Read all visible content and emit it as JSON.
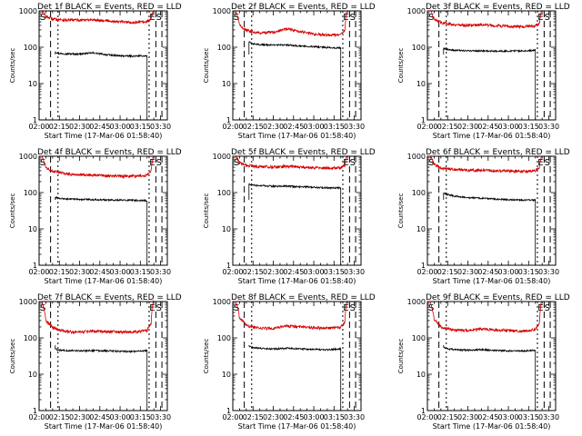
{
  "chart_data": [
    {
      "type": "line",
      "title": "Det 1f BLACK = Events, RED = LLD",
      "xlabel": "Start Time (17-Mar-06 01:58:40)",
      "ylabel": "Counts/sec",
      "y_scale": "log",
      "ylim": [
        1,
        1000
      ],
      "xlim_minutes": [
        0,
        95
      ],
      "x_tick_labels": [
        "02:00",
        "02:15",
        "02:30",
        "02:45",
        "03:00",
        "03:15",
        "03:30"
      ],
      "y_tick_labels": [
        "1",
        "10",
        "100",
        "1000"
      ],
      "markers": [
        {
          "label": "S",
          "time": "02:00"
        },
        {
          "label": "E",
          "time": "03:21"
        },
        {
          "label": "S",
          "time": "03:26"
        }
      ],
      "series": [
        {
          "name": "Events",
          "color": "#000000",
          "x_minutes": [
            12,
            14,
            20,
            30,
            40,
            50,
            60,
            70,
            80
          ],
          "values": [
            75,
            68,
            66,
            65,
            70,
            62,
            58,
            57,
            58
          ]
        },
        {
          "name": "LLD",
          "color": "#d40000",
          "x_minutes": [
            2,
            5,
            10,
            14,
            20,
            30,
            40,
            50,
            60,
            70,
            80,
            83,
            84.5
          ],
          "values": [
            1000,
            700,
            600,
            580,
            560,
            560,
            570,
            540,
            500,
            480,
            500,
            600,
            1000
          ]
        }
      ]
    },
    {
      "type": "line",
      "title": "Det 2f BLACK = Events, RED = LLD",
      "xlabel": "Start Time (17-Mar-06 01:58:40)",
      "ylabel": "Counts/sec",
      "y_scale": "log",
      "ylim": [
        1,
        1000
      ],
      "xlim_minutes": [
        0,
        95
      ],
      "x_tick_labels": [
        "02:00",
        "02:15",
        "02:30",
        "02:45",
        "03:00",
        "03:15",
        "03:30"
      ],
      "y_tick_labels": [
        "1",
        "10",
        "100",
        "1000"
      ],
      "markers": [
        {
          "label": "S",
          "time": "02:00"
        },
        {
          "label": "E",
          "time": "03:21"
        },
        {
          "label": "S",
          "time": "03:26"
        }
      ],
      "series": [
        {
          "name": "Events",
          "color": "#000000",
          "x_minutes": [
            12,
            14,
            20,
            30,
            40,
            50,
            60,
            70,
            80
          ],
          "values": [
            140,
            125,
            118,
            115,
            115,
            108,
            105,
            98,
            95
          ]
        },
        {
          "name": "LLD",
          "color": "#d40000",
          "x_minutes": [
            2,
            5,
            10,
            14,
            20,
            30,
            40,
            50,
            60,
            70,
            80,
            83,
            84.5
          ],
          "values": [
            1000,
            400,
            290,
            270,
            250,
            260,
            320,
            270,
            230,
            220,
            215,
            300,
            1000
          ]
        }
      ]
    },
    {
      "type": "line",
      "title": "Det 3f BLACK = Events, RED = LLD",
      "xlabel": "Start Time (17-Mar-06 01:58:40)",
      "ylabel": "Counts/sec",
      "y_scale": "log",
      "ylim": [
        1,
        1000
      ],
      "xlim_minutes": [
        0,
        95
      ],
      "x_tick_labels": [
        "02:00",
        "02:15",
        "02:30",
        "02:45",
        "03:00",
        "03:15",
        "03:30"
      ],
      "y_tick_labels": [
        "1",
        "10",
        "100",
        "1000"
      ],
      "markers": [
        {
          "label": "S",
          "time": "02:00"
        },
        {
          "label": "E",
          "time": "03:21"
        },
        {
          "label": "S",
          "time": "03:26"
        }
      ],
      "series": [
        {
          "name": "Events",
          "color": "#000000",
          "x_minutes": [
            12,
            14,
            20,
            30,
            40,
            50,
            60,
            70,
            80
          ],
          "values": [
            95,
            88,
            82,
            80,
            80,
            78,
            78,
            80,
            82
          ]
        },
        {
          "name": "LLD",
          "color": "#d40000",
          "x_minutes": [
            2,
            5,
            10,
            14,
            20,
            30,
            40,
            50,
            60,
            70,
            80,
            83,
            84.5
          ],
          "values": [
            1000,
            600,
            480,
            450,
            420,
            400,
            420,
            390,
            380,
            370,
            380,
            450,
            1000
          ]
        }
      ]
    },
    {
      "type": "line",
      "title": "Det 4f BLACK = Events, RED = LLD",
      "xlabel": "Start Time (17-Mar-06 01:58:40)",
      "ylabel": "Counts/sec",
      "y_scale": "log",
      "ylim": [
        1,
        1000
      ],
      "xlim_minutes": [
        0,
        95
      ],
      "x_tick_labels": [
        "02:00",
        "02:15",
        "02:30",
        "02:45",
        "03:00",
        "03:15",
        "03:30"
      ],
      "y_tick_labels": [
        "1",
        "10",
        "100",
        "1000"
      ],
      "markers": [
        {
          "label": "S",
          "time": "02:00"
        },
        {
          "label": "E",
          "time": "03:21"
        },
        {
          "label": "S",
          "time": "03:26"
        }
      ],
      "series": [
        {
          "name": "Events",
          "color": "#000000",
          "x_minutes": [
            12,
            14,
            20,
            30,
            40,
            50,
            60,
            70,
            80
          ],
          "values": [
            75,
            70,
            67,
            65,
            64,
            63,
            62,
            61,
            60
          ]
        },
        {
          "name": "LLD",
          "color": "#d40000",
          "x_minutes": [
            2,
            5,
            10,
            14,
            20,
            30,
            40,
            50,
            60,
            70,
            80,
            83,
            84.5
          ],
          "values": [
            1000,
            500,
            380,
            360,
            330,
            310,
            300,
            290,
            280,
            285,
            300,
            400,
            1000
          ]
        }
      ]
    },
    {
      "type": "line",
      "title": "Det 5f BLACK = Events, RED = LLD",
      "xlabel": "Start Time (17-Mar-06 01:58:40)",
      "ylabel": "Counts/sec",
      "y_scale": "log",
      "ylim": [
        1,
        1000
      ],
      "xlim_minutes": [
        0,
        95
      ],
      "x_tick_labels": [
        "02:00",
        "02:15",
        "02:30",
        "02:45",
        "03:00",
        "03:15",
        "03:30"
      ],
      "y_tick_labels": [
        "1",
        "10",
        "100",
        "1000"
      ],
      "markers": [
        {
          "label": "S",
          "time": "02:00"
        },
        {
          "label": "E",
          "time": "03:21"
        },
        {
          "label": "S",
          "time": "03:26"
        }
      ],
      "series": [
        {
          "name": "Events",
          "color": "#000000",
          "x_minutes": [
            12,
            14,
            20,
            30,
            40,
            50,
            60,
            70,
            80
          ],
          "values": [
            170,
            160,
            155,
            150,
            150,
            145,
            140,
            135,
            135
          ]
        },
        {
          "name": "LLD",
          "color": "#d40000",
          "x_minutes": [
            2,
            5,
            10,
            14,
            20,
            30,
            40,
            50,
            60,
            70,
            80,
            83,
            84.5
          ],
          "values": [
            1000,
            650,
            560,
            540,
            520,
            510,
            530,
            500,
            480,
            470,
            480,
            560,
            1000
          ]
        }
      ]
    },
    {
      "type": "line",
      "title": "Det 6f BLACK = Events, RED = LLD",
      "xlabel": "Start Time (17-Mar-06 01:58:40)",
      "ylabel": "Counts/sec",
      "y_scale": "log",
      "ylim": [
        1,
        1000
      ],
      "xlim_minutes": [
        0,
        95
      ],
      "x_tick_labels": [
        "02:00",
        "02:15",
        "02:30",
        "02:45",
        "03:00",
        "03:15",
        "03:30"
      ],
      "y_tick_labels": [
        "1",
        "10",
        "100",
        "1000"
      ],
      "markers": [
        {
          "label": "S",
          "time": "02:00"
        },
        {
          "label": "E",
          "time": "03:21"
        },
        {
          "label": "S",
          "time": "03:26"
        }
      ],
      "series": [
        {
          "name": "Events",
          "color": "#000000",
          "x_minutes": [
            12,
            14,
            20,
            30,
            40,
            50,
            60,
            70,
            80
          ],
          "values": [
            100,
            90,
            80,
            72,
            70,
            66,
            64,
            62,
            62
          ]
        },
        {
          "name": "LLD",
          "color": "#d40000",
          "x_minutes": [
            2,
            5,
            10,
            14,
            20,
            30,
            40,
            50,
            60,
            70,
            80,
            83,
            84.5
          ],
          "values": [
            1000,
            600,
            470,
            450,
            430,
            410,
            420,
            400,
            390,
            380,
            400,
            480,
            1000
          ]
        }
      ]
    },
    {
      "type": "line",
      "title": "Det 7f BLACK = Events, RED = LLD",
      "xlabel": "Start Time (17-Mar-06 01:58:40)",
      "ylabel": "Counts/sec",
      "y_scale": "log",
      "ylim": [
        1,
        1000
      ],
      "xlim_minutes": [
        0,
        95
      ],
      "x_tick_labels": [
        "02:00",
        "02:15",
        "02:30",
        "02:45",
        "03:00",
        "03:15",
        "03:30"
      ],
      "y_tick_labels": [
        "1",
        "10",
        "100",
        "1000"
      ],
      "markers": [
        {
          "label": "S",
          "time": "02:00"
        },
        {
          "label": "E",
          "time": "03:21"
        },
        {
          "label": "S",
          "time": "03:26"
        }
      ],
      "series": [
        {
          "name": "Events",
          "color": "#000000",
          "x_minutes": [
            12,
            14,
            20,
            30,
            40,
            50,
            60,
            70,
            80
          ],
          "values": [
            50,
            46,
            45,
            44,
            45,
            44,
            43,
            42,
            45
          ]
        },
        {
          "name": "LLD",
          "color": "#d40000",
          "x_minutes": [
            2,
            5,
            10,
            14,
            20,
            30,
            40,
            50,
            60,
            70,
            80,
            83,
            84.5
          ],
          "values": [
            1000,
            300,
            190,
            170,
            150,
            145,
            155,
            150,
            145,
            145,
            160,
            250,
            1000
          ]
        }
      ]
    },
    {
      "type": "line",
      "title": "Det 8f BLACK = Events, RED = LLD",
      "xlabel": "Start Time (17-Mar-06 01:58:40)",
      "ylabel": "Counts/sec",
      "y_scale": "log",
      "ylim": [
        1,
        1000
      ],
      "xlim_minutes": [
        0,
        95
      ],
      "x_tick_labels": [
        "02:00",
        "02:15",
        "02:30",
        "02:45",
        "03:00",
        "03:15",
        "03:30"
      ],
      "y_tick_labels": [
        "1",
        "10",
        "100",
        "1000"
      ],
      "markers": [
        {
          "label": "S",
          "time": "02:00"
        },
        {
          "label": "E",
          "time": "03:21"
        },
        {
          "label": "S",
          "time": "03:26"
        }
      ],
      "series": [
        {
          "name": "Events",
          "color": "#000000",
          "x_minutes": [
            12,
            14,
            20,
            30,
            40,
            50,
            60,
            70,
            80
          ],
          "values": [
            60,
            55,
            52,
            50,
            52,
            50,
            48,
            47,
            50
          ]
        },
        {
          "name": "LLD",
          "color": "#d40000",
          "x_minutes": [
            2,
            5,
            10,
            14,
            20,
            30,
            40,
            50,
            60,
            70,
            80,
            83,
            84.5
          ],
          "values": [
            1000,
            350,
            220,
            200,
            190,
            180,
            210,
            200,
            190,
            185,
            195,
            280,
            1000
          ]
        }
      ]
    },
    {
      "type": "line",
      "title": "Det 9f BLACK = Events, RED = LLD",
      "xlabel": "Start Time (17-Mar-06 01:58:40)",
      "ylabel": "Counts/sec",
      "y_scale": "log",
      "ylim": [
        1,
        1000
      ],
      "xlim_minutes": [
        0,
        95
      ],
      "x_tick_labels": [
        "02:00",
        "02:15",
        "02:30",
        "02:45",
        "03:00",
        "03:15",
        "03:30"
      ],
      "y_tick_labels": [
        "1",
        "10",
        "100",
        "1000"
      ],
      "markers": [
        {
          "label": "S",
          "time": "02:00"
        },
        {
          "label": "E",
          "time": "03:21"
        },
        {
          "label": "S",
          "time": "03:26"
        }
      ],
      "series": [
        {
          "name": "Events",
          "color": "#000000",
          "x_minutes": [
            12,
            14,
            20,
            30,
            40,
            50,
            60,
            70,
            80
          ],
          "values": [
            55,
            50,
            48,
            46,
            48,
            45,
            44,
            43,
            46
          ]
        },
        {
          "name": "LLD",
          "color": "#d40000",
          "x_minutes": [
            2,
            5,
            10,
            14,
            20,
            30,
            40,
            50,
            60,
            70,
            80,
            83,
            84.5
          ],
          "values": [
            1000,
            320,
            200,
            180,
            165,
            160,
            175,
            165,
            160,
            155,
            170,
            250,
            1000
          ]
        }
      ]
    }
  ]
}
